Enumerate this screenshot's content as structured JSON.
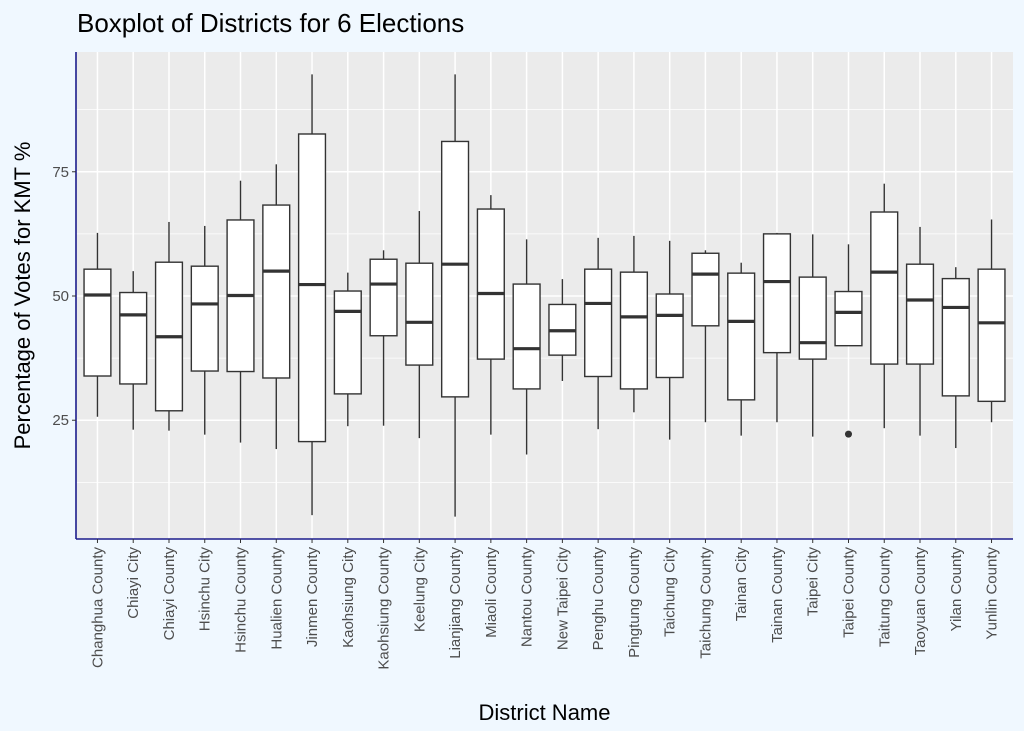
{
  "chart_data": {
    "type": "boxplot",
    "title": "Boxplot of Districts for 6 Elections",
    "xlabel": "District Name",
    "ylabel": "Percentage of Votes for KMT %",
    "ylim": [
      1.1,
      99.1
    ],
    "yticks": [
      25,
      50,
      75
    ],
    "grid": true,
    "legend": "none",
    "categories": [
      "Changhua County",
      "Chiayi City",
      "Chiayi County",
      "Hsinchu City",
      "Hsinchu County",
      "Hualien County",
      "Jinmen County",
      "Kaohsiung City",
      "Kaohsiung County",
      "Keelung City",
      "Lianjiang County",
      "Miaoli County",
      "Nantou County",
      "New Taipei City",
      "Penghu County",
      "Pingtung County",
      "Taichung City",
      "Taichung County",
      "Tainan City",
      "Tainan County",
      "Taipei City",
      "Taipei County",
      "Taitung County",
      "Taoyuan County",
      "Yilan County",
      "Yunlin County"
    ],
    "boxes": [
      {
        "category": "Changhua County",
        "whisker_low": 25.7,
        "q1": 33.9,
        "median": 50.2,
        "q3": 55.4,
        "whisker_high": 62.7,
        "outliers": []
      },
      {
        "category": "Chiayi City",
        "whisker_low": 23.1,
        "q1": 32.3,
        "median": 46.2,
        "q3": 50.7,
        "whisker_high": 55.0,
        "outliers": []
      },
      {
        "category": "Chiayi County",
        "whisker_low": 22.9,
        "q1": 26.9,
        "median": 41.8,
        "q3": 56.8,
        "whisker_high": 64.9,
        "outliers": []
      },
      {
        "category": "Hsinchu City",
        "whisker_low": 22.1,
        "q1": 34.9,
        "median": 48.4,
        "q3": 56.0,
        "whisker_high": 64.1,
        "outliers": []
      },
      {
        "category": "Hsinchu County",
        "whisker_low": 20.5,
        "q1": 34.8,
        "median": 50.1,
        "q3": 65.3,
        "whisker_high": 73.2,
        "outliers": []
      },
      {
        "category": "Hualien County",
        "whisker_low": 19.2,
        "q1": 33.5,
        "median": 55.0,
        "q3": 68.3,
        "whisker_high": 76.5,
        "outliers": []
      },
      {
        "category": "Jinmen County",
        "whisker_low": 5.9,
        "q1": 20.7,
        "median": 52.3,
        "q3": 82.6,
        "whisker_high": 94.6,
        "outliers": []
      },
      {
        "category": "Kaohsiung City",
        "whisker_low": 23.8,
        "q1": 30.3,
        "median": 46.9,
        "q3": 51.0,
        "whisker_high": 54.7,
        "outliers": []
      },
      {
        "category": "Kaohsiung County",
        "whisker_low": 23.9,
        "q1": 42.0,
        "median": 52.4,
        "q3": 57.4,
        "whisker_high": 59.2,
        "outliers": []
      },
      {
        "category": "Keelung City",
        "whisker_low": 21.4,
        "q1": 36.1,
        "median": 44.7,
        "q3": 56.6,
        "whisker_high": 67.1,
        "outliers": []
      },
      {
        "category": "Lianjiang County",
        "whisker_low": 5.6,
        "q1": 29.7,
        "median": 56.4,
        "q3": 81.1,
        "whisker_high": 94.6,
        "outliers": []
      },
      {
        "category": "Miaoli County",
        "whisker_low": 22.1,
        "q1": 37.3,
        "median": 50.5,
        "q3": 67.5,
        "whisker_high": 70.3,
        "outliers": []
      },
      {
        "category": "Nantou County",
        "whisker_low": 18.1,
        "q1": 31.3,
        "median": 39.4,
        "q3": 52.4,
        "whisker_high": 61.4,
        "outliers": []
      },
      {
        "category": "New Taipei City",
        "whisker_low": 32.9,
        "q1": 38.1,
        "median": 43.0,
        "q3": 48.3,
        "whisker_high": 53.4,
        "outliers": []
      },
      {
        "category": "Penghu County",
        "whisker_low": 23.2,
        "q1": 33.8,
        "median": 48.5,
        "q3": 55.4,
        "whisker_high": 61.7,
        "outliers": []
      },
      {
        "category": "Pingtung County",
        "whisker_low": 26.6,
        "q1": 31.3,
        "median": 45.8,
        "q3": 54.8,
        "whisker_high": 62.1,
        "outliers": []
      },
      {
        "category": "Taichung City",
        "whisker_low": 21.1,
        "q1": 33.6,
        "median": 46.1,
        "q3": 50.4,
        "whisker_high": 61.1,
        "outliers": []
      },
      {
        "category": "Taichung County",
        "whisker_low": 24.6,
        "q1": 44.0,
        "median": 54.4,
        "q3": 58.6,
        "whisker_high": 59.2,
        "outliers": []
      },
      {
        "category": "Tainan City",
        "whisker_low": 21.9,
        "q1": 29.1,
        "median": 44.9,
        "q3": 54.6,
        "whisker_high": 56.7,
        "outliers": []
      },
      {
        "category": "Tainan County",
        "whisker_low": 24.6,
        "q1": 38.6,
        "median": 52.9,
        "q3": 62.5,
        "whisker_high": 62.7,
        "outliers": []
      },
      {
        "category": "Taipei City",
        "whisker_low": 21.7,
        "q1": 37.3,
        "median": 40.6,
        "q3": 53.8,
        "whisker_high": 62.4,
        "outliers": []
      },
      {
        "category": "Taipei County",
        "whisker_low": 40.0,
        "q1": 40.0,
        "median": 46.7,
        "q3": 50.9,
        "whisker_high": 60.4,
        "outliers": [
          22.2
        ]
      },
      {
        "category": "Taitung County",
        "whisker_low": 23.4,
        "q1": 36.3,
        "median": 54.8,
        "q3": 66.9,
        "whisker_high": 72.6,
        "outliers": []
      },
      {
        "category": "Taoyuan County",
        "whisker_low": 21.9,
        "q1": 36.3,
        "median": 49.2,
        "q3": 56.4,
        "whisker_high": 63.9,
        "outliers": []
      },
      {
        "category": "Yilan County",
        "whisker_low": 19.4,
        "q1": 29.9,
        "median": 47.7,
        "q3": 53.5,
        "whisker_high": 55.8,
        "outliers": []
      },
      {
        "category": "Yunlin County",
        "whisker_low": 24.6,
        "q1": 28.8,
        "median": 44.6,
        "q3": 55.4,
        "whisker_high": 65.4,
        "outliers": []
      }
    ],
    "colors": {
      "background": "#f0f8ff",
      "panel": "#ebebeb",
      "grid": "#ffffff",
      "axis_line": "#1c1c8c",
      "box_fill": "#ffffff",
      "box_line": "#333333",
      "tick_text": "#4d4d4d"
    }
  }
}
